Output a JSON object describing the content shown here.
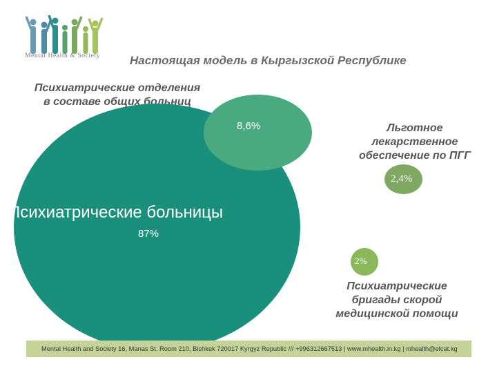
{
  "logo": {
    "text": "Mental Health & Society"
  },
  "title": "Настоящая модель в Кыргызской Республике",
  "segments": {
    "hospitals": {
      "label": "Психиатрические больницы",
      "value": "87%"
    },
    "general_units": {
      "label_line1": "Психиатрические отделения",
      "label_line2": "в составе общих больниц",
      "value": "8,6%"
    },
    "drug_provision": {
      "label_line1": "Льготное",
      "label_line2": "лекарственное",
      "label_line3": "обеспечение по ПГГ",
      "value": "2,4%"
    },
    "emergency_teams": {
      "label_line1": "Психиатрические",
      "label_line2": "бригады скорой",
      "label_line3": "медицинской помощи",
      "value": "2%"
    }
  },
  "footer": {
    "text": "Mental Health and Society 16, Manas St. Room 210, Bishkek 720017 Kyrgyz Republic /// +996312667513 | www.mhealth.in.kg | mhealth@elcat.kg"
  },
  "colors": {
    "big": "#1a8f7b",
    "mid": "#4aaa7f",
    "drug": "#7fa862",
    "brig": "#8bb85a",
    "footer_bg": "#c5d39a"
  }
}
